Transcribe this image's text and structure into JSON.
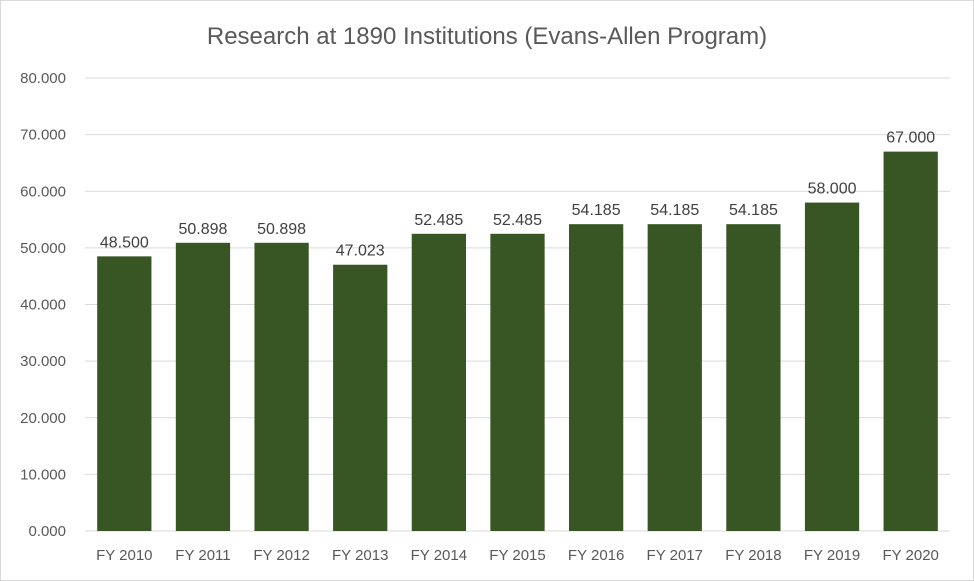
{
  "chart_data": {
    "type": "bar",
    "title": "Research at 1890 Institutions (Evans-Allen Program)",
    "xlabel": "",
    "ylabel": "",
    "categories": [
      "FY 2010",
      "FY 2011",
      "FY 2012",
      "FY 2013",
      "FY 2014",
      "FY 2015",
      "FY 2016",
      "FY 2017",
      "FY 2018",
      "FY 2019",
      "FY 2020"
    ],
    "values": [
      48.5,
      50.898,
      50.898,
      47.023,
      52.485,
      52.485,
      54.185,
      54.185,
      54.185,
      58.0,
      67.0
    ],
    "data_labels": [
      "48.500",
      "50.898",
      "50.898",
      "47.023",
      "52.485",
      "52.485",
      "54.185",
      "54.185",
      "54.185",
      "58.000",
      "67.000"
    ],
    "ylim": [
      0,
      80
    ],
    "yticks": [
      0,
      10,
      20,
      30,
      40,
      50,
      60,
      70,
      80
    ],
    "ytick_labels": [
      "0.000",
      "10.000",
      "20.000",
      "30.000",
      "40.000",
      "50.000",
      "60.000",
      "70.000",
      "80.000"
    ],
    "grid": true,
    "legend": "none",
    "bar_color": "#375623"
  }
}
